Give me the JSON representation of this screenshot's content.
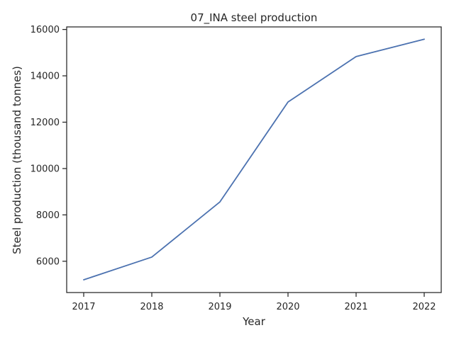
{
  "chart_data": {
    "type": "line",
    "title": "07_INA steel production",
    "xlabel": "Year",
    "ylabel": "Steel production (thousand tonnes)",
    "x": [
      2017,
      2018,
      2019,
      2020,
      2021,
      2022
    ],
    "x_tick_labels": [
      "2017",
      "2018",
      "2019",
      "2020",
      "2021",
      "2022"
    ],
    "series": [
      {
        "values": [
          5200,
          6180,
          8560,
          12870,
          14830,
          15580
        ],
        "color": "#4c72b0"
      }
    ],
    "y_ticks": [
      6000,
      8000,
      10000,
      12000,
      14000,
      16000
    ],
    "y_tick_labels": [
      "6000",
      "8000",
      "10000",
      "12000",
      "14000",
      "16000"
    ],
    "ylim": [
      4650,
      16110
    ],
    "xlim": [
      2016.75,
      2022.25
    ],
    "grid": false,
    "legend": "none"
  }
}
